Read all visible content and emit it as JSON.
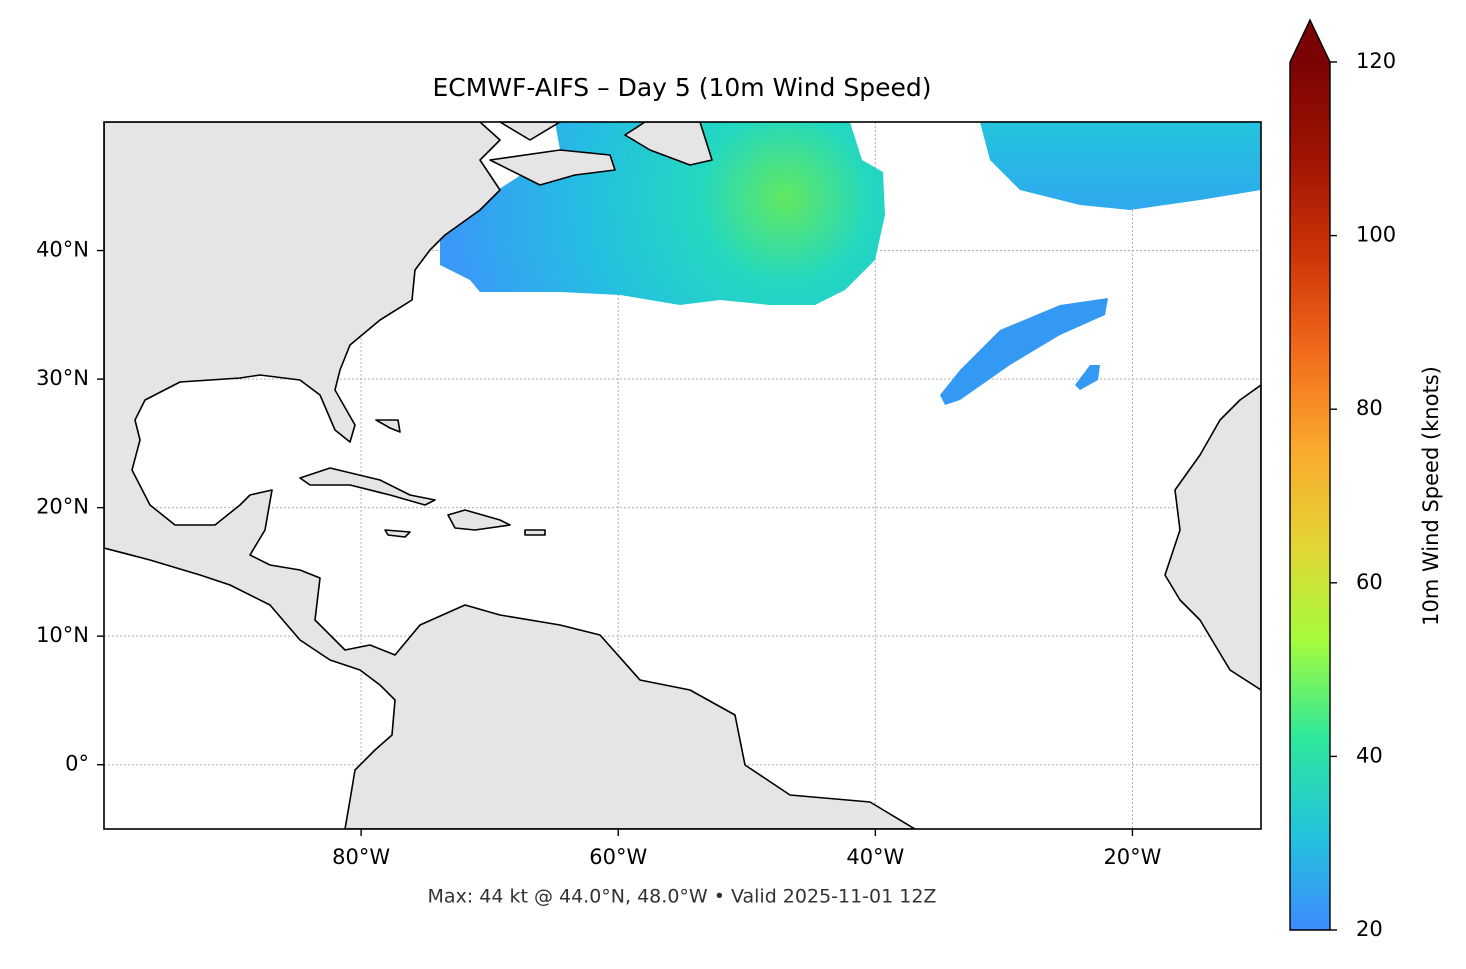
{
  "chart_data": {
    "type": "map",
    "title": "ECMWF-AIFS – Day 5 (10m Wind Speed)",
    "subtitle": "Max: 44 kt @ 44.0°N, 48.0°W • Valid 2025-11-01 12Z",
    "xlim": [
      -100,
      -10
    ],
    "ylim": [
      -5,
      50
    ],
    "xticks": [
      {
        "value": -80,
        "label": "80°W"
      },
      {
        "value": -60,
        "label": "60°W"
      },
      {
        "value": -40,
        "label": "40°W"
      },
      {
        "value": -20,
        "label": "20°W"
      }
    ],
    "yticks": [
      {
        "value": 0,
        "label": "0°"
      },
      {
        "value": 10,
        "label": "10°N"
      },
      {
        "value": 20,
        "label": "20°N"
      },
      {
        "value": 30,
        "label": "30°N"
      },
      {
        "value": 40,
        "label": "40°N"
      }
    ],
    "grid": true,
    "colorbar": {
      "label": "10m Wind Speed (knots)",
      "lim": [
        20,
        120
      ],
      "ticks": [
        20,
        40,
        60,
        80,
        100,
        120
      ],
      "colors": [
        "#3d8bfd",
        "#23c4dc",
        "#2ee89a",
        "#a4fc3c",
        "#e4d435",
        "#fba92d",
        "#f26a1b",
        "#cc3508",
        "#a01303",
        "#7a0403"
      ]
    }
  }
}
